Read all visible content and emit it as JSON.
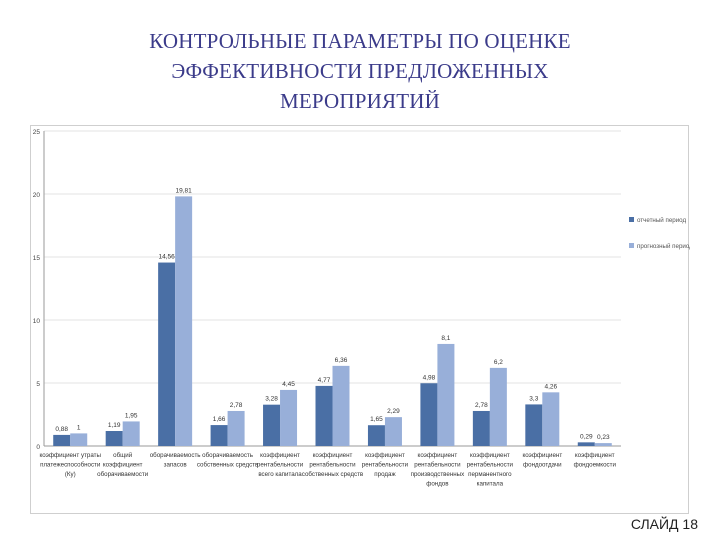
{
  "slide": {
    "title_lines": [
      "КОНТРОЛЬНЫЕ ПАРАМЕТРЫ ПО ОЦЕНКЕ",
      "ЭФФЕКТИВНОСТИ ПРЕДЛОЖЕННЫХ",
      "МЕРОПРИЯТИЙ"
    ],
    "number": "СЛАЙД 18"
  },
  "chart_data": {
    "type": "bar",
    "title": "",
    "xlabel": "",
    "ylabel": "",
    "ylim": [
      0,
      25
    ],
    "yticks": [
      0,
      5,
      10,
      15,
      20,
      25
    ],
    "grid": true,
    "legend_position": "right",
    "categories": [
      [
        "коэффициент утраты",
        "платежеспособности",
        "(Ку)"
      ],
      [
        "общий",
        "коэффициент",
        "оборачиваемости"
      ],
      [
        "оборачиваемость",
        "запасов"
      ],
      [
        "оборачиваемость",
        "собственных средств"
      ],
      [
        "коэффициент",
        "рентабельности",
        "всего капитала"
      ],
      [
        "коэффициент",
        "рентабельности",
        "собственных средств"
      ],
      [
        "коэффициент",
        "рентабельности",
        "продаж"
      ],
      [
        "коэффициент",
        "рентабельности",
        "производственных",
        "фондов"
      ],
      [
        "коэффициент",
        "рентабельности",
        "перманентного",
        "капитала"
      ],
      [
        "коэффициент",
        "фондоотдачи"
      ],
      [
        "коэффициент",
        "фондоемкости"
      ]
    ],
    "series": [
      {
        "name": "отчетный период",
        "color": "#4a6fa5",
        "values": [
          0.88,
          1.19,
          14.56,
          1.66,
          3.28,
          4.77,
          1.65,
          4.98,
          2.78,
          3.3,
          0.29
        ],
        "labels": [
          "0,88",
          "1,19",
          "14,56",
          "1,66",
          "3,28",
          "4,77",
          "1,65",
          "4,98",
          "2,78",
          "3,3",
          "0,29"
        ]
      },
      {
        "name": "прогнозный период",
        "color": "#98afd9",
        "values": [
          1,
          1.95,
          19.81,
          2.78,
          4.45,
          6.36,
          2.29,
          8.1,
          6.2,
          4.26,
          0.23
        ],
        "labels": [
          "1",
          "1,95",
          "19,81",
          "2,78",
          "4,45",
          "6,36",
          "2,29",
          "8,1",
          "6,2",
          "4,26",
          "0,23"
        ]
      }
    ]
  }
}
